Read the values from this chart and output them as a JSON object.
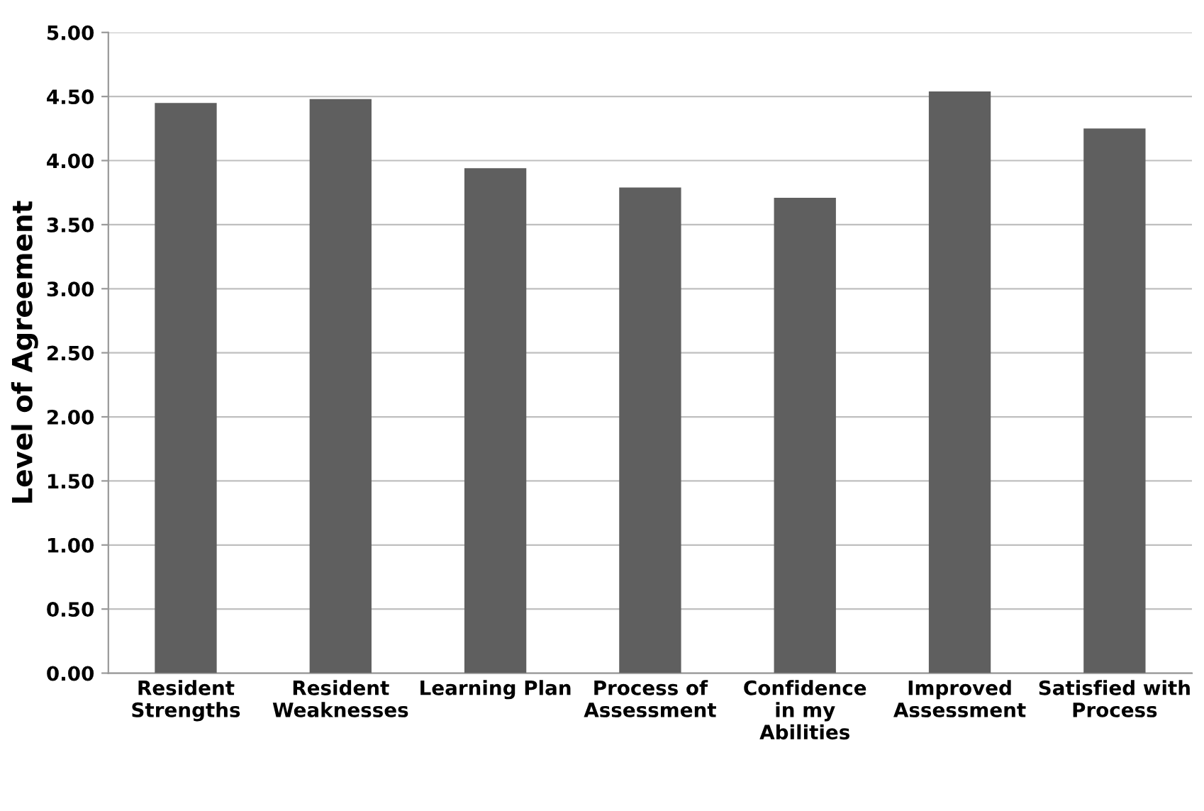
{
  "chart_data": {
    "type": "bar",
    "ylabel": "Level of Agreement",
    "categories": [
      "Resident\nStrengths",
      "Resident\nWeaknesses",
      "Learning Plan",
      "Process of\nAssessment",
      "Confidence\nin my\nAbilities",
      "Improved\nAssessment",
      "Satisfied with\nProcess"
    ],
    "values": [
      4.45,
      4.48,
      3.94,
      3.79,
      3.71,
      4.54,
      4.25
    ],
    "color": "#5f5f5f",
    "ylim": [
      0,
      5
    ],
    "yticks": [
      {
        "value": 0,
        "label": "0.00"
      },
      {
        "value": 0.5,
        "label": "0.50"
      },
      {
        "value": 1,
        "label": "1.00"
      },
      {
        "value": 1.5,
        "label": "1.50"
      },
      {
        "value": 2,
        "label": "2.00"
      },
      {
        "value": 2.5,
        "label": "2.50"
      },
      {
        "value": 3,
        "label": "3.00"
      },
      {
        "value": 3.5,
        "label": "3.50"
      },
      {
        "value": 4,
        "label": "4.00"
      },
      {
        "value": 4.5,
        "label": "4.50"
      },
      {
        "value": 5,
        "label": "5.00"
      }
    ],
    "grid": "y"
  }
}
